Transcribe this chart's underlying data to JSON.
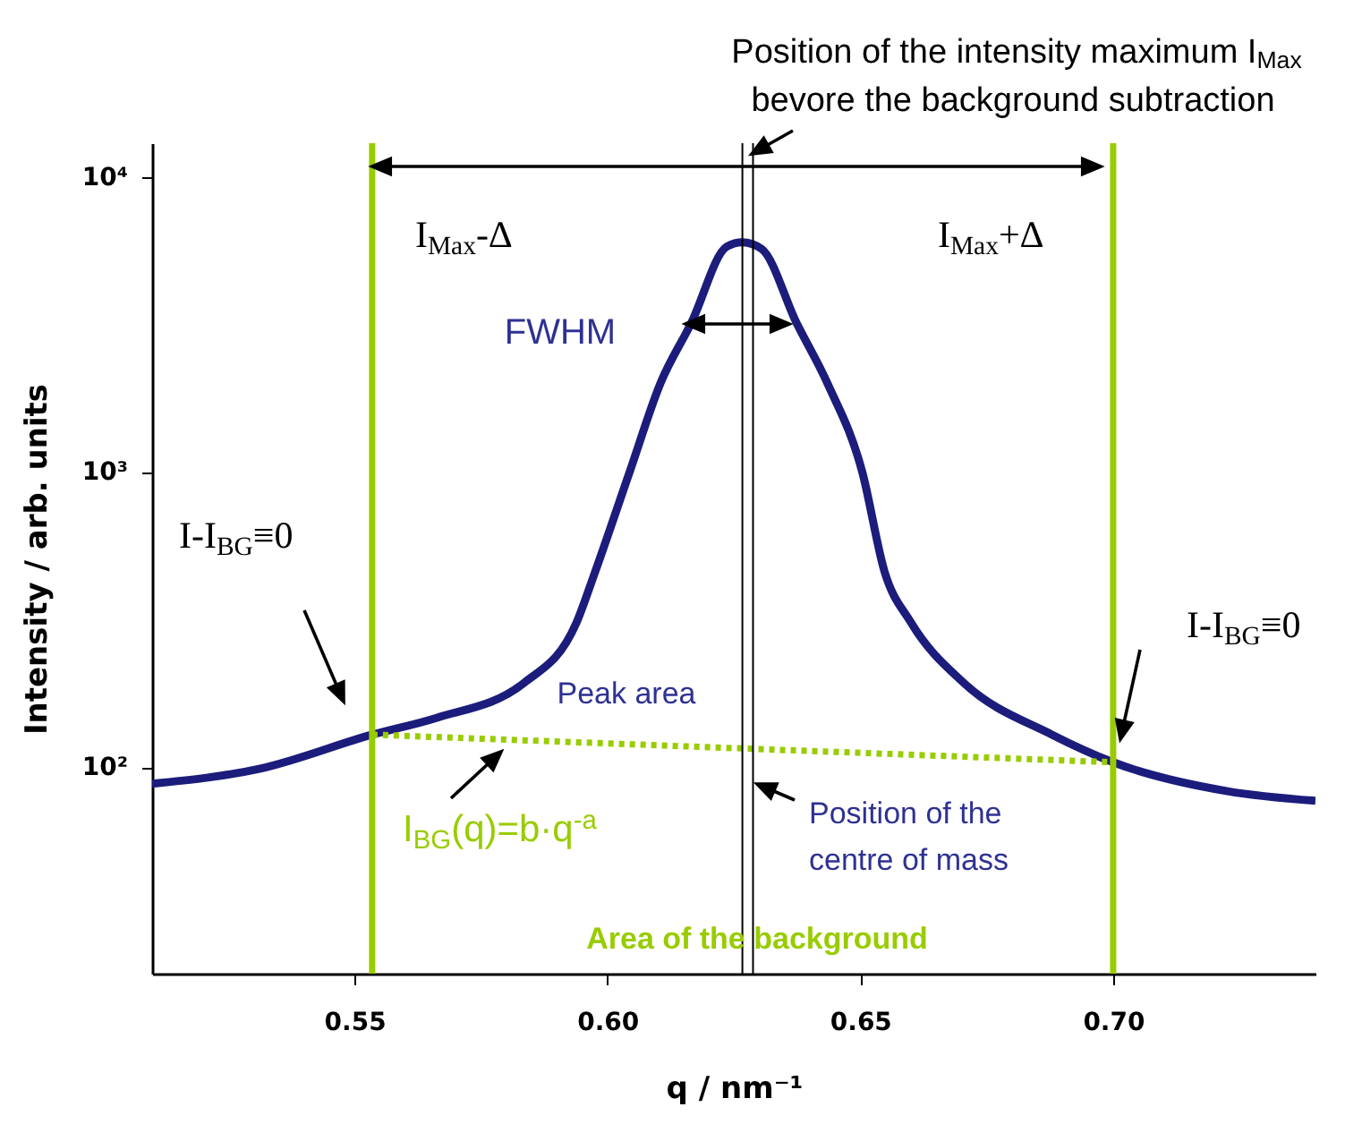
{
  "chart_data": {
    "type": "line",
    "xlabel": "q / nm⁻¹",
    "ylabel": "Intensity / arb. units",
    "log": "y",
    "xlim": [
      0.51,
      0.74
    ],
    "ylim": [
      20,
      13000
    ],
    "xticks": [
      0.55,
      {
        "value": 0.6,
        "label": "0.60"
      },
      0.65,
      {
        "value": 0.7,
        "label": "0.70"
      }
    ],
    "yticks": [
      {
        "value": 100,
        "label": "10²"
      },
      {
        "value": 1000,
        "label": "10³"
      },
      {
        "value": 10000,
        "label": "10⁴"
      }
    ],
    "x": [
      0.51,
      0.5314,
      0.5535,
      0.5662,
      0.5835,
      0.5939,
      0.5974,
      0.6044,
      0.6105,
      0.6166,
      0.6236,
      0.6267,
      0.6305,
      0.6374,
      0.6435,
      0.6504,
      0.6548,
      0.66,
      0.6705,
      0.6879,
      0.7,
      0.7226,
      0.74
    ],
    "series": [
      {
        "color": "#1c1c7c",
        "line_style": "solid",
        "values": [
          88,
          99,
          129,
          147,
          193,
          309,
          450,
          1000,
          2000,
          3200,
          5800,
          6000,
          5700,
          3200,
          2000,
          1000,
          460,
          310,
          193,
          129,
          104,
          83,
          77
        ]
      },
      {
        "color": "#99cc00",
        "line_style": "dotted",
        "x": [
          0.5535,
          0.7
        ],
        "values": [
          129,
          104
        ]
      }
    ],
    "ref_lines": [
      {
        "axis": "x",
        "value": 0.5535,
        "color": "#99cc00"
      },
      {
        "axis": "x",
        "value": 0.7,
        "color": "#99cc00"
      },
      {
        "axis": "x",
        "value": 0.6267,
        "color": "#000000"
      },
      {
        "axis": "x",
        "value": 0.6288,
        "color": "#000000"
      }
    ],
    "annotations": [
      "Position of the intensity maximum I$_{Max}$",
      "bevore the background subtraction",
      "I$_{Max}$-Δ",
      "I$_{Max}$+Δ",
      "FWHM",
      "I-I$_{BG}$≡0",
      "I-I$_{BG}$≡0",
      "Peak area",
      "I$_{BG}$(q)=b·q$^{-a}$",
      "Position of the",
      "centre of mass",
      "Area of the background"
    ]
  }
}
